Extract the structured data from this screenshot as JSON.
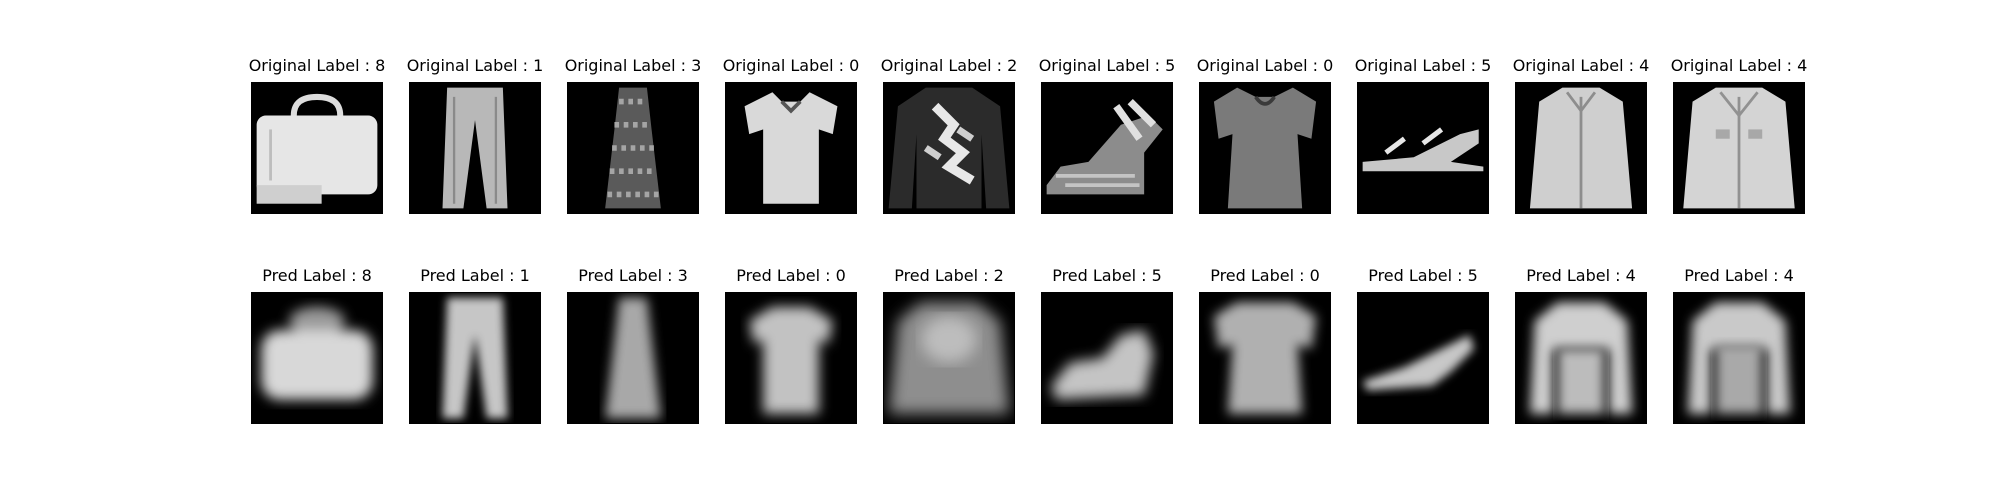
{
  "rows": [
    {
      "prefix": "Original Label",
      "items": [
        {
          "label": "Original Label : 8",
          "value": 8,
          "icon": "bag-image-icon"
        },
        {
          "label": "Original Label : 1",
          "value": 1,
          "icon": "trouser-image-icon"
        },
        {
          "label": "Original Label : 3",
          "value": 3,
          "icon": "dress-image-icon"
        },
        {
          "label": "Original Label : 0",
          "value": 0,
          "icon": "tshirt-image-icon"
        },
        {
          "label": "Original Label : 2",
          "value": 2,
          "icon": "pullover-image-icon"
        },
        {
          "label": "Original Label : 5",
          "value": 5,
          "icon": "sandal-image-icon"
        },
        {
          "label": "Original Label : 0",
          "value": 0,
          "icon": "top-image-icon"
        },
        {
          "label": "Original Label : 5",
          "value": 5,
          "icon": "sandal-flat-image-icon"
        },
        {
          "label": "Original Label : 4",
          "value": 4,
          "icon": "coat-image-icon"
        },
        {
          "label": "Original Label : 4",
          "value": 4,
          "icon": "coat-image-icon"
        }
      ]
    },
    {
      "prefix": "Pred Label",
      "items": [
        {
          "label": "Pred Label : 8",
          "value": 8,
          "icon": "bag-blurred-image-icon"
        },
        {
          "label": "Pred Label : 1",
          "value": 1,
          "icon": "trouser-blurred-image-icon"
        },
        {
          "label": "Pred Label : 3",
          "value": 3,
          "icon": "dress-blurred-image-icon"
        },
        {
          "label": "Pred Label : 0",
          "value": 0,
          "icon": "tshirt-blurred-image-icon"
        },
        {
          "label": "Pred Label : 2",
          "value": 2,
          "icon": "pullover-blurred-image-icon"
        },
        {
          "label": "Pred Label : 5",
          "value": 5,
          "icon": "sandal-blurred-image-icon"
        },
        {
          "label": "Pred Label : 0",
          "value": 0,
          "icon": "top-blurred-image-icon"
        },
        {
          "label": "Pred Label : 5",
          "value": 5,
          "icon": "sandal-flat-blurred-image-icon"
        },
        {
          "label": "Pred Label : 4",
          "value": 4,
          "icon": "coat-blurred-image-icon"
        },
        {
          "label": "Pred Label : 4",
          "value": 4,
          "icon": "coat-blurred-image-icon"
        }
      ]
    }
  ],
  "colors": {
    "background": "#ffffff",
    "image_bg": "#000000",
    "text": "#000000"
  }
}
